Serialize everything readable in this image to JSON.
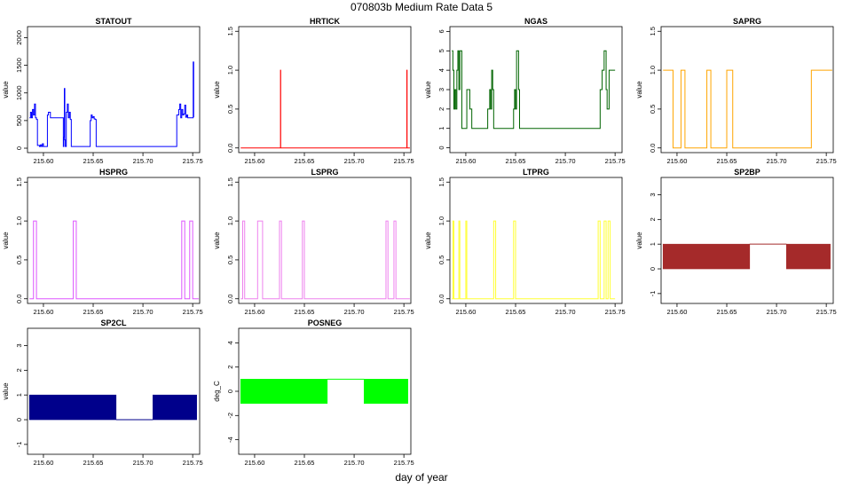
{
  "figure": {
    "title": "070803b   Medium Rate Data 5",
    "xlabel": "day of year"
  },
  "chart_data": [
    {
      "type": "line",
      "title": "STATOUT",
      "ylabel": "value",
      "color": "#0000ff",
      "xlim": [
        215.584,
        215.757
      ],
      "ylim": [
        -80,
        2200
      ],
      "xticks": [
        215.6,
        215.65,
        215.7,
        215.75
      ],
      "yticks": [
        0,
        500,
        1000,
        1500,
        2000
      ],
      "x": [
        215.586,
        215.587,
        215.588,
        215.589,
        215.59,
        215.591,
        215.592,
        215.593,
        215.594,
        215.595,
        215.596,
        215.597,
        215.598,
        215.599,
        215.6,
        215.601,
        215.603,
        215.604,
        215.605,
        215.606,
        215.607,
        215.62,
        215.6205,
        215.621,
        215.6215,
        215.622,
        215.623,
        215.624,
        215.625,
        215.626,
        215.627,
        215.628,
        215.629,
        215.63,
        215.631,
        215.632,
        215.633,
        215.634,
        215.645,
        215.646,
        215.647,
        215.648,
        215.649,
        215.65,
        215.651,
        215.652,
        215.653,
        215.654,
        215.655,
        215.733,
        215.734,
        215.735,
        215.736,
        215.737,
        215.738,
        215.739,
        215.74,
        215.741,
        215.742,
        215.743,
        215.744,
        215.745,
        215.75,
        215.7505,
        215.751
      ],
      "y": [
        550,
        650,
        550,
        700,
        600,
        800,
        550,
        520,
        50,
        50,
        30,
        60,
        30,
        80,
        30,
        30,
        30,
        600,
        650,
        650,
        550,
        30,
        200,
        1080,
        150,
        30,
        650,
        800,
        550,
        650,
        520,
        30,
        30,
        30,
        30,
        30,
        30,
        30,
        30,
        30,
        500,
        600,
        550,
        570,
        530,
        520,
        30,
        30,
        30,
        30,
        600,
        600,
        700,
        800,
        550,
        700,
        600,
        620,
        780,
        560,
        600,
        550,
        550,
        1560,
        560
      ]
    },
    {
      "type": "line",
      "title": "HRTICK",
      "ylabel": "value",
      "color": "#ff0000",
      "xlim": [
        215.584,
        215.757
      ],
      "ylim": [
        -0.06,
        1.56
      ],
      "xticks": [
        215.6,
        215.65,
        215.7,
        215.75
      ],
      "yticks": [
        0.0,
        0.5,
        1.0,
        1.5
      ],
      "x": [
        215.586,
        215.626,
        215.626,
        215.6262,
        215.753,
        215.753,
        215.7532,
        215.756
      ],
      "y": [
        0,
        0,
        1,
        0,
        0,
        1,
        0,
        0
      ]
    },
    {
      "type": "line",
      "title": "NGAS",
      "ylabel": "value",
      "color": "#006400",
      "xlim": [
        215.584,
        215.757
      ],
      "ylim": [
        -0.25,
        6.25
      ],
      "xticks": [
        215.6,
        215.65,
        215.7,
        215.75
      ],
      "yticks": [
        0,
        1,
        2,
        3,
        4,
        5,
        6
      ],
      "x": [
        215.586,
        215.587,
        215.588,
        215.589,
        215.59,
        215.591,
        215.592,
        215.593,
        215.594,
        215.595,
        215.596,
        215.6,
        215.601,
        215.603,
        215.604,
        215.605,
        215.606,
        215.607,
        215.618,
        215.619,
        215.62,
        215.621,
        215.622,
        215.623,
        215.624,
        215.625,
        215.626,
        215.627,
        215.628,
        215.63,
        215.632,
        215.634,
        215.645,
        215.647,
        215.648,
        215.649,
        215.65,
        215.651,
        215.652,
        215.653,
        215.654,
        215.655,
        215.733,
        215.734,
        215.735,
        215.736,
        215.737,
        215.738,
        215.739,
        215.74,
        215.741,
        215.742,
        215.743,
        215.744,
        215.745,
        215.75
      ],
      "y": [
        5,
        4,
        2,
        3,
        2,
        4,
        5,
        3,
        5,
        5,
        1,
        1,
        3,
        3,
        2,
        2,
        1,
        1,
        1,
        1,
        1,
        1,
        2,
        2,
        3,
        2,
        4,
        3,
        1,
        1,
        1,
        1,
        1,
        1,
        2,
        3,
        2,
        5,
        5,
        3,
        1,
        1,
        1,
        1,
        3,
        3,
        4,
        4,
        5,
        5,
        3,
        2,
        2,
        4,
        4,
        4
      ]
    },
    {
      "type": "line",
      "title": "SAPRG",
      "ylabel": "value",
      "color": "#ffa500",
      "xlim": [
        215.584,
        215.757
      ],
      "ylim": [
        -0.06,
        1.56
      ],
      "xticks": [
        215.6,
        215.65,
        215.7,
        215.75
      ],
      "yticks": [
        0.0,
        0.5,
        1.0,
        1.5
      ],
      "x": [
        215.586,
        215.596,
        215.596,
        215.604,
        215.604,
        215.608,
        215.608,
        215.63,
        215.63,
        215.634,
        215.634,
        215.65,
        215.65,
        215.656,
        215.656,
        215.735,
        215.735,
        215.756
      ],
      "y": [
        1,
        1,
        0,
        0,
        1,
        1,
        0,
        0,
        1,
        1,
        0,
        0,
        1,
        1,
        0,
        0,
        1,
        1
      ]
    },
    {
      "type": "line",
      "title": "HSPRG",
      "ylabel": "value",
      "color": "#dd55ff",
      "xlim": [
        215.584,
        215.757
      ],
      "ylim": [
        -0.06,
        1.56
      ],
      "xticks": [
        215.6,
        215.65,
        215.7,
        215.75
      ],
      "yticks": [
        0.0,
        0.5,
        1.0,
        1.5
      ],
      "x": [
        215.586,
        215.59,
        215.59,
        215.593,
        215.593,
        215.63,
        215.63,
        215.633,
        215.633,
        215.739,
        215.739,
        215.742,
        215.742,
        215.747,
        215.747,
        215.75,
        215.75,
        215.756
      ],
      "y": [
        0,
        0,
        1,
        1,
        0,
        0,
        1,
        1,
        0,
        0,
        1,
        1,
        0,
        0,
        1,
        1,
        0,
        0
      ]
    },
    {
      "type": "line",
      "title": "LSPRG",
      "ylabel": "value",
      "color": "#ee82ee",
      "xlim": [
        215.584,
        215.757
      ],
      "ylim": [
        -0.06,
        1.56
      ],
      "xticks": [
        215.6,
        215.65,
        215.7,
        215.75
      ],
      "yticks": [
        0.0,
        0.5,
        1.0,
        1.5
      ],
      "x": [
        215.586,
        215.588,
        215.588,
        215.59,
        215.59,
        215.603,
        215.603,
        215.608,
        215.608,
        215.625,
        215.625,
        215.627,
        215.627,
        215.648,
        215.648,
        215.65,
        215.65,
        215.732,
        215.732,
        215.734,
        215.734,
        215.74,
        215.74,
        215.742,
        215.742,
        215.756
      ],
      "y": [
        0,
        0,
        1,
        1,
        0,
        0,
        1,
        1,
        0,
        0,
        1,
        1,
        0,
        0,
        1,
        1,
        0,
        0,
        1,
        1,
        0,
        0,
        1,
        1,
        0,
        0
      ]
    },
    {
      "type": "line",
      "title": "LTPRG",
      "ylabel": "value",
      "color": "#ffff33",
      "xlim": [
        215.584,
        215.757
      ],
      "ylim": [
        -0.06,
        1.56
      ],
      "xticks": [
        215.6,
        215.65,
        215.7,
        215.75
      ],
      "yticks": [
        0.0,
        0.5,
        1.0,
        1.5
      ],
      "x": [
        215.586,
        215.587,
        215.587,
        215.588,
        215.588,
        215.593,
        215.593,
        215.594,
        215.594,
        215.6,
        215.6,
        215.601,
        215.601,
        215.628,
        215.628,
        215.63,
        215.63,
        215.648,
        215.648,
        215.65,
        215.65,
        215.733,
        215.733,
        215.735,
        215.735,
        215.739,
        215.739,
        215.741,
        215.741,
        215.743,
        215.743,
        215.745,
        215.745,
        215.75
      ],
      "y": [
        0,
        0,
        1,
        1,
        0,
        0,
        1,
        1,
        0,
        0,
        1,
        1,
        0,
        0,
        1,
        1,
        0,
        0,
        1,
        1,
        0,
        0,
        1,
        1,
        0,
        0,
        1,
        1,
        0,
        0,
        1,
        1,
        0,
        0
      ]
    },
    {
      "type": "area",
      "title": "SP2BP",
      "ylabel": "value",
      "color": "#a52a2a",
      "xlim": [
        215.584,
        215.757
      ],
      "ylim": [
        -1.4,
        3.7
      ],
      "xticks": [
        215.6,
        215.65,
        215.7,
        215.75
      ],
      "yticks": [
        -1,
        0,
        1,
        2,
        3
      ],
      "band": [
        0,
        1
      ],
      "segments": [
        [
          215.586,
          215.673
        ],
        [
          215.71,
          215.754
        ]
      ],
      "gapline": [
        215.673,
        215.71,
        1
      ]
    },
    {
      "type": "area",
      "title": "SP2CL",
      "ylabel": "value",
      "color": "#00008b",
      "xlim": [
        215.584,
        215.757
      ],
      "ylim": [
        -1.4,
        3.7
      ],
      "xticks": [
        215.6,
        215.65,
        215.7,
        215.75
      ],
      "yticks": [
        -1,
        0,
        1,
        2,
        3
      ],
      "band": [
        0,
        1
      ],
      "segments": [
        [
          215.586,
          215.673
        ],
        [
          215.71,
          215.754
        ]
      ],
      "gapline": [
        215.673,
        215.71,
        0
      ]
    },
    {
      "type": "area",
      "title": "POSNEG",
      "ylabel": "deg_C",
      "color": "#00ff00",
      "xlim": [
        215.584,
        215.757
      ],
      "ylim": [
        -5.2,
        5.2
      ],
      "xticks": [
        215.6,
        215.65,
        215.7,
        215.75
      ],
      "yticks": [
        -4,
        -2,
        0,
        2,
        4
      ],
      "band": [
        -1,
        1
      ],
      "segments": [
        [
          215.586,
          215.673
        ],
        [
          215.71,
          215.754
        ]
      ],
      "gapline": [
        215.673,
        215.71,
        1
      ]
    }
  ]
}
